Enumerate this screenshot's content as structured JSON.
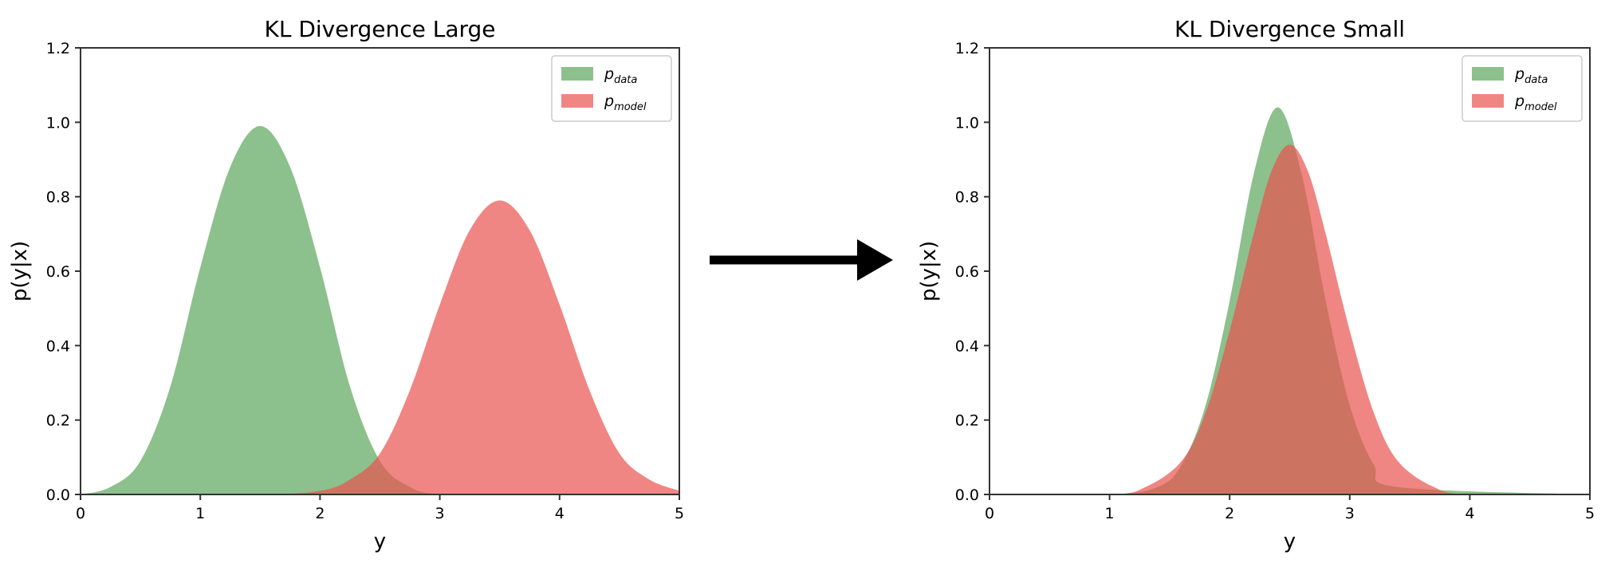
{
  "chart_data": [
    {
      "type": "area",
      "title": "KL Divergence Large",
      "xlabel": "y",
      "ylabel": "p(y|x)",
      "xlim": [
        0,
        5
      ],
      "ylim": [
        0,
        1.2
      ],
      "xticks": [
        "0",
        "1",
        "2",
        "3",
        "4",
        "5"
      ],
      "yticks": [
        "0.0",
        "0.2",
        "0.4",
        "0.6",
        "0.8",
        "1.0",
        "1.2"
      ],
      "grid": false,
      "legend": "top-right",
      "series": [
        {
          "name": "p",
          "subscript": "data",
          "color": "#5ba55b",
          "opacity": 0.7,
          "x": [
            0,
            0.25,
            0.5,
            0.75,
            1.0,
            1.25,
            1.5,
            1.75,
            2.0,
            2.25,
            2.5,
            2.75,
            3.0,
            3.5,
            4.0,
            5.0
          ],
          "values": [
            0.0,
            0.02,
            0.09,
            0.29,
            0.61,
            0.88,
            0.99,
            0.88,
            0.61,
            0.29,
            0.09,
            0.02,
            0.0,
            0.0,
            0.0,
            0.0
          ]
        },
        {
          "name": "p",
          "subscript": "model",
          "color": "#e8534f",
          "opacity": 0.7,
          "x": [
            0,
            1.5,
            2.0,
            2.25,
            2.5,
            2.75,
            3.0,
            3.25,
            3.5,
            3.75,
            4.0,
            4.25,
            4.5,
            4.75,
            5.0
          ],
          "values": [
            0.0,
            0.0,
            0.01,
            0.04,
            0.11,
            0.28,
            0.51,
            0.71,
            0.79,
            0.71,
            0.51,
            0.28,
            0.11,
            0.04,
            0.01
          ]
        }
      ]
    },
    {
      "type": "area",
      "title": "KL Divergence Small",
      "xlabel": "y",
      "ylabel": "p(y|x)",
      "xlim": [
        0,
        5
      ],
      "ylim": [
        0,
        1.2
      ],
      "xticks": [
        "0",
        "1",
        "2",
        "3",
        "4",
        "5"
      ],
      "yticks": [
        "0.0",
        "0.2",
        "0.4",
        "0.6",
        "0.8",
        "1.0",
        "1.2"
      ],
      "grid": false,
      "legend": "top-right",
      "series": [
        {
          "name": "p",
          "subscript": "data",
          "color": "#5ba55b",
          "opacity": 0.7,
          "x": [
            0,
            1.0,
            1.4,
            1.6,
            1.8,
            2.0,
            2.2,
            2.4,
            2.6,
            2.8,
            3.0,
            3.2,
            3.4,
            5.0
          ],
          "values": [
            0.0,
            0.0,
            0.02,
            0.08,
            0.24,
            0.52,
            0.86,
            1.04,
            0.86,
            0.52,
            0.24,
            0.08,
            0.02,
            0.0
          ]
        },
        {
          "name": "p",
          "subscript": "model",
          "color": "#e8534f",
          "opacity": 0.7,
          "x": [
            0,
            1.0,
            1.3,
            1.6,
            1.8,
            2.0,
            2.2,
            2.35,
            2.5,
            2.65,
            2.8,
            3.0,
            3.2,
            3.4,
            3.7,
            4.0,
            5.0
          ],
          "values": [
            0.0,
            0.0,
            0.02,
            0.09,
            0.22,
            0.44,
            0.7,
            0.87,
            0.94,
            0.87,
            0.7,
            0.44,
            0.22,
            0.09,
            0.02,
            0.0,
            0.0
          ]
        }
      ]
    }
  ],
  "arrow": {
    "icon": "right-arrow-icon",
    "color": "#000000"
  }
}
